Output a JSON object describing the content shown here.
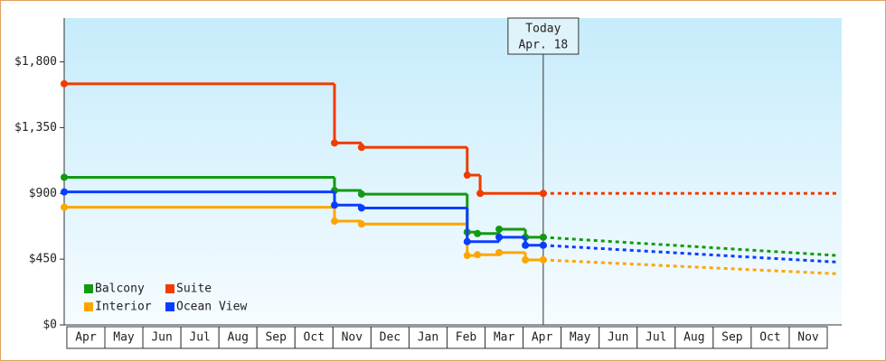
{
  "chart_data": {
    "type": "step",
    "xlim": [
      -0.07,
      20.38
    ],
    "ylim": [
      0,
      2100
    ],
    "xticks": [
      {
        "value": 0.5,
        "label": "Apr"
      },
      {
        "value": 1.5,
        "label": "May"
      },
      {
        "value": 2.5,
        "label": "Jun"
      },
      {
        "value": 3.5,
        "label": "Jul"
      },
      {
        "value": 4.5,
        "label": "Aug"
      },
      {
        "value": 5.5,
        "label": "Sep"
      },
      {
        "value": 6.5,
        "label": "Oct"
      },
      {
        "value": 7.5,
        "label": "Nov"
      },
      {
        "value": 8.5,
        "label": "Dec"
      },
      {
        "value": 9.5,
        "label": "Jan"
      },
      {
        "value": 10.5,
        "label": "Feb"
      },
      {
        "value": 11.5,
        "label": "Mar"
      },
      {
        "value": 12.5,
        "label": "Apr"
      },
      {
        "value": 13.5,
        "label": "May"
      },
      {
        "value": 14.5,
        "label": "Jun"
      },
      {
        "value": 15.5,
        "label": "Jul"
      },
      {
        "value": 16.5,
        "label": "Aug"
      },
      {
        "value": 17.5,
        "label": "Sep"
      },
      {
        "value": 18.5,
        "label": "Oct"
      },
      {
        "value": 19.5,
        "label": "Nov"
      }
    ],
    "yticks": [
      {
        "value": 0,
        "label": "$0"
      },
      {
        "value": 450,
        "label": "$450"
      },
      {
        "value": 900,
        "label": "$900"
      },
      {
        "value": 1350,
        "label": "$1,350"
      },
      {
        "value": 1800,
        "label": "$1,800"
      }
    ],
    "today": {
      "x": 12.53,
      "label": [
        "Today",
        "Apr. 18"
      ]
    },
    "series": [
      {
        "name": "Balcony",
        "color": "#129a12",
        "x": [
          -0.07,
          7.04,
          7.75,
          10.53,
          10.8,
          11.37,
          12.06,
          12.53
        ],
        "values": [
          1010,
          920,
          895,
          635,
          625,
          655,
          600,
          600
        ],
        "forecast_x": [
          12.53,
          20.26
        ],
        "forecast_values": [
          600,
          475
        ]
      },
      {
        "name": "Suite",
        "color": "#f03c00",
        "x": [
          -0.07,
          7.04,
          7.75,
          10.53,
          10.87,
          12.53
        ],
        "values": [
          1650,
          1245,
          1215,
          1025,
          900,
          900
        ],
        "forecast_x": [
          12.53,
          20.26
        ],
        "forecast_values": [
          900,
          900
        ]
      },
      {
        "name": "Interior",
        "color": "#ffa500",
        "x": [
          -0.07,
          7.04,
          7.75,
          10.53,
          10.8,
          11.37,
          12.06,
          12.53
        ],
        "values": [
          805,
          710,
          690,
          475,
          480,
          495,
          445,
          445
        ],
        "forecast_x": [
          12.53,
          20.26
        ],
        "forecast_values": [
          445,
          350
        ]
      },
      {
        "name": "Ocean View",
        "color": "#0a3cff",
        "x": [
          -0.07,
          7.04,
          7.75,
          10.53,
          11.37,
          12.06,
          12.53
        ],
        "values": [
          910,
          820,
          800,
          570,
          600,
          545,
          545
        ],
        "forecast_x": [
          12.53,
          20.26
        ],
        "forecast_values": [
          545,
          430
        ]
      }
    ]
  }
}
